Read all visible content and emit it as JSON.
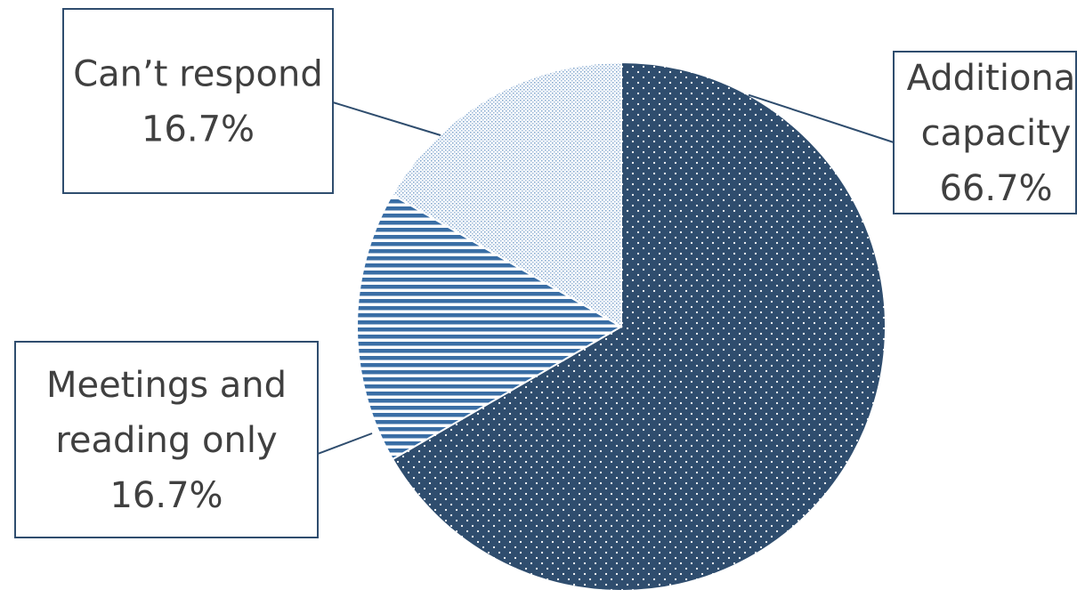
{
  "chart_data": {
    "type": "pie",
    "title": "",
    "start_angle_deg": 0,
    "direction": "clockwise",
    "slices": [
      {
        "label": [
          "Additional",
          "capacity"
        ],
        "value": 66.7,
        "value_label": "66.7%",
        "color": "#2F4D6E",
        "pattern": "white-dots"
      },
      {
        "label": [
          "Meetings and",
          "reading only"
        ],
        "value": 16.7,
        "value_label": "16.7%",
        "color": "#3A6EA5",
        "pattern": "horizontal-stripes"
      },
      {
        "label": [
          "Can’t respond"
        ],
        "value": 16.7,
        "value_label": "16.7%",
        "color": "#9DB9D9",
        "pattern": "fine-dots"
      }
    ],
    "legend": "none",
    "data_labels": "callout-boxes"
  },
  "colors": {
    "callout_border": "#2F4D6E",
    "callout_text": "#404040"
  }
}
